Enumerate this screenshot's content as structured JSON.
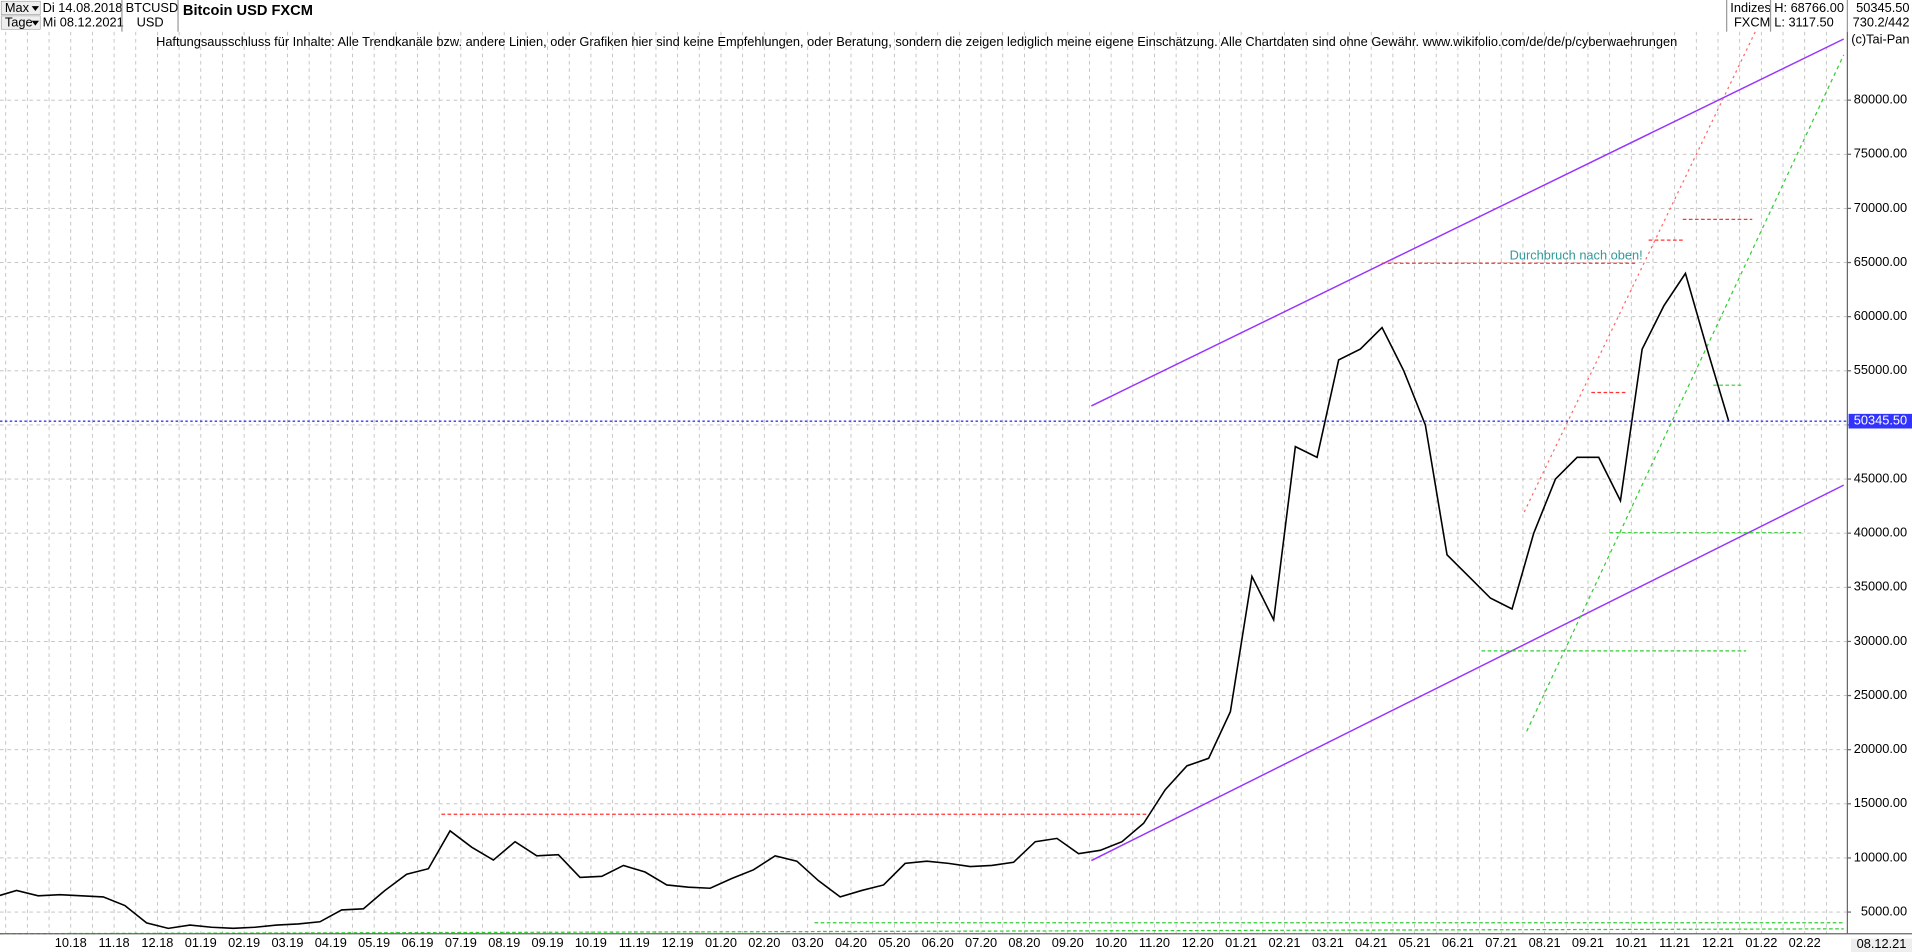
{
  "header": {
    "range": "Max",
    "interval": "Tage",
    "start_date": "Di 14.08.2018",
    "end_date": "Mi 08.12.2021",
    "symbol": "BTCUSD",
    "currency": "USD",
    "group": "Indizes",
    "source": "FXCM",
    "high": "H: 68766.00",
    "low": "L: 3117.50",
    "last": "50345.50",
    "info": "730.2/442",
    "copyright": "(c)Tai-Pan",
    "last_date": "08.12.21"
  },
  "chart_data": {
    "type": "line",
    "title": "Bitcoin USD FXCM",
    "subtitle": "Haftungsausschluss für Inhalte: Alle Trendkanäle bzw. andere Linien, oder Grafiken hier sind keine Empfehlungen, oder Beratung, sondern die zeigen lediglich meine eigene Einschätzung. Alle Chartdaten sind ohne Gewähr.  www.wikifolio.com/de/de/p/cyberwaehrungen",
    "annotations": [
      "Durchbruch nach oben!"
    ],
    "categories": [
      null,
      null,
      null,
      null,
      "10.18",
      null,
      "11.18",
      null,
      "12.18",
      null,
      "01.19",
      null,
      "02.19",
      null,
      "03.19",
      null,
      "04.19",
      null,
      "05.19",
      null,
      "06.19",
      null,
      "07.19",
      null,
      "08.19",
      null,
      "09.19",
      null,
      "10.19",
      null,
      "11.19",
      null,
      "12.19",
      null,
      "01.20",
      null,
      "02.20",
      null,
      "03.20",
      null,
      "04.20",
      null,
      "05.20",
      null,
      "06.20",
      null,
      "07.20",
      null,
      "08.20",
      null,
      "09.20",
      null,
      "10.20",
      null,
      "11.20",
      null,
      "12.20",
      null,
      "01.21",
      null,
      "02.21",
      null,
      "03.21",
      null,
      "04.21",
      null,
      "05.21",
      null,
      "06.21",
      null,
      "07.21",
      null,
      "08.21",
      null,
      "09.21",
      null,
      "10.21",
      null,
      "11.21",
      null,
      "12.21",
      null,
      "01.22",
      null,
      "02.22",
      null
    ],
    "series": [
      {
        "name": "BTCUSD",
        "color": "#000000",
        "values": [
          6400,
          7000,
          6500,
          6600,
          6500,
          6400,
          5600,
          4000,
          3500,
          3800,
          3600,
          3500,
          3600,
          3800,
          3900,
          4100,
          5200,
          5300,
          7000,
          8500,
          9000,
          12500,
          11000,
          9800,
          11500,
          10200,
          10300,
          8200,
          8300,
          9300,
          8700,
          7500,
          7300,
          7200,
          8100,
          8900,
          10200,
          9700,
          7900,
          6400,
          7000,
          7500,
          9500,
          9700,
          9500,
          9200,
          9300,
          9600,
          11500,
          11800,
          10400,
          10700,
          11500,
          13200,
          16300,
          18500,
          19200,
          23500,
          36000,
          32000,
          48000,
          47000,
          56000,
          57000,
          59000,
          55000,
          50000,
          38000,
          36000,
          34000,
          33000,
          40000,
          45000,
          47000,
          47000,
          43000,
          57000,
          61000,
          64000,
          57000,
          50300,
          null,
          null,
          null,
          null,
          null
        ]
      }
    ],
    "last_price": {
      "value": 50345.5,
      "label": "50345.50"
    },
    "ylim": [
      3000,
      87000
    ],
    "yticks": [
      {
        "value": 5000,
        "label": "5000.00"
      },
      {
        "value": 10000,
        "label": "10000.00"
      },
      {
        "value": 15000,
        "label": "15000.00"
      },
      {
        "value": 20000,
        "label": "20000.00"
      },
      {
        "value": 25000,
        "label": "25000.00"
      },
      {
        "value": 30000,
        "label": "30000.00"
      },
      {
        "value": 35000,
        "label": "35000.00"
      },
      {
        "value": 40000,
        "label": "40000.00"
      },
      {
        "value": 45000,
        "label": "45000.00"
      },
      {
        "value": 50000,
        "label": "50000.00"
      },
      {
        "value": 55000,
        "label": "55000.00"
      },
      {
        "value": 60000,
        "label": "60000.00"
      },
      {
        "value": 65000,
        "label": "65000.00"
      },
      {
        "value": 70000,
        "label": "70000.00"
      },
      {
        "value": 75000,
        "label": "75000.00"
      },
      {
        "value": 80000,
        "label": "80000.00"
      }
    ],
    "grid": true
  }
}
